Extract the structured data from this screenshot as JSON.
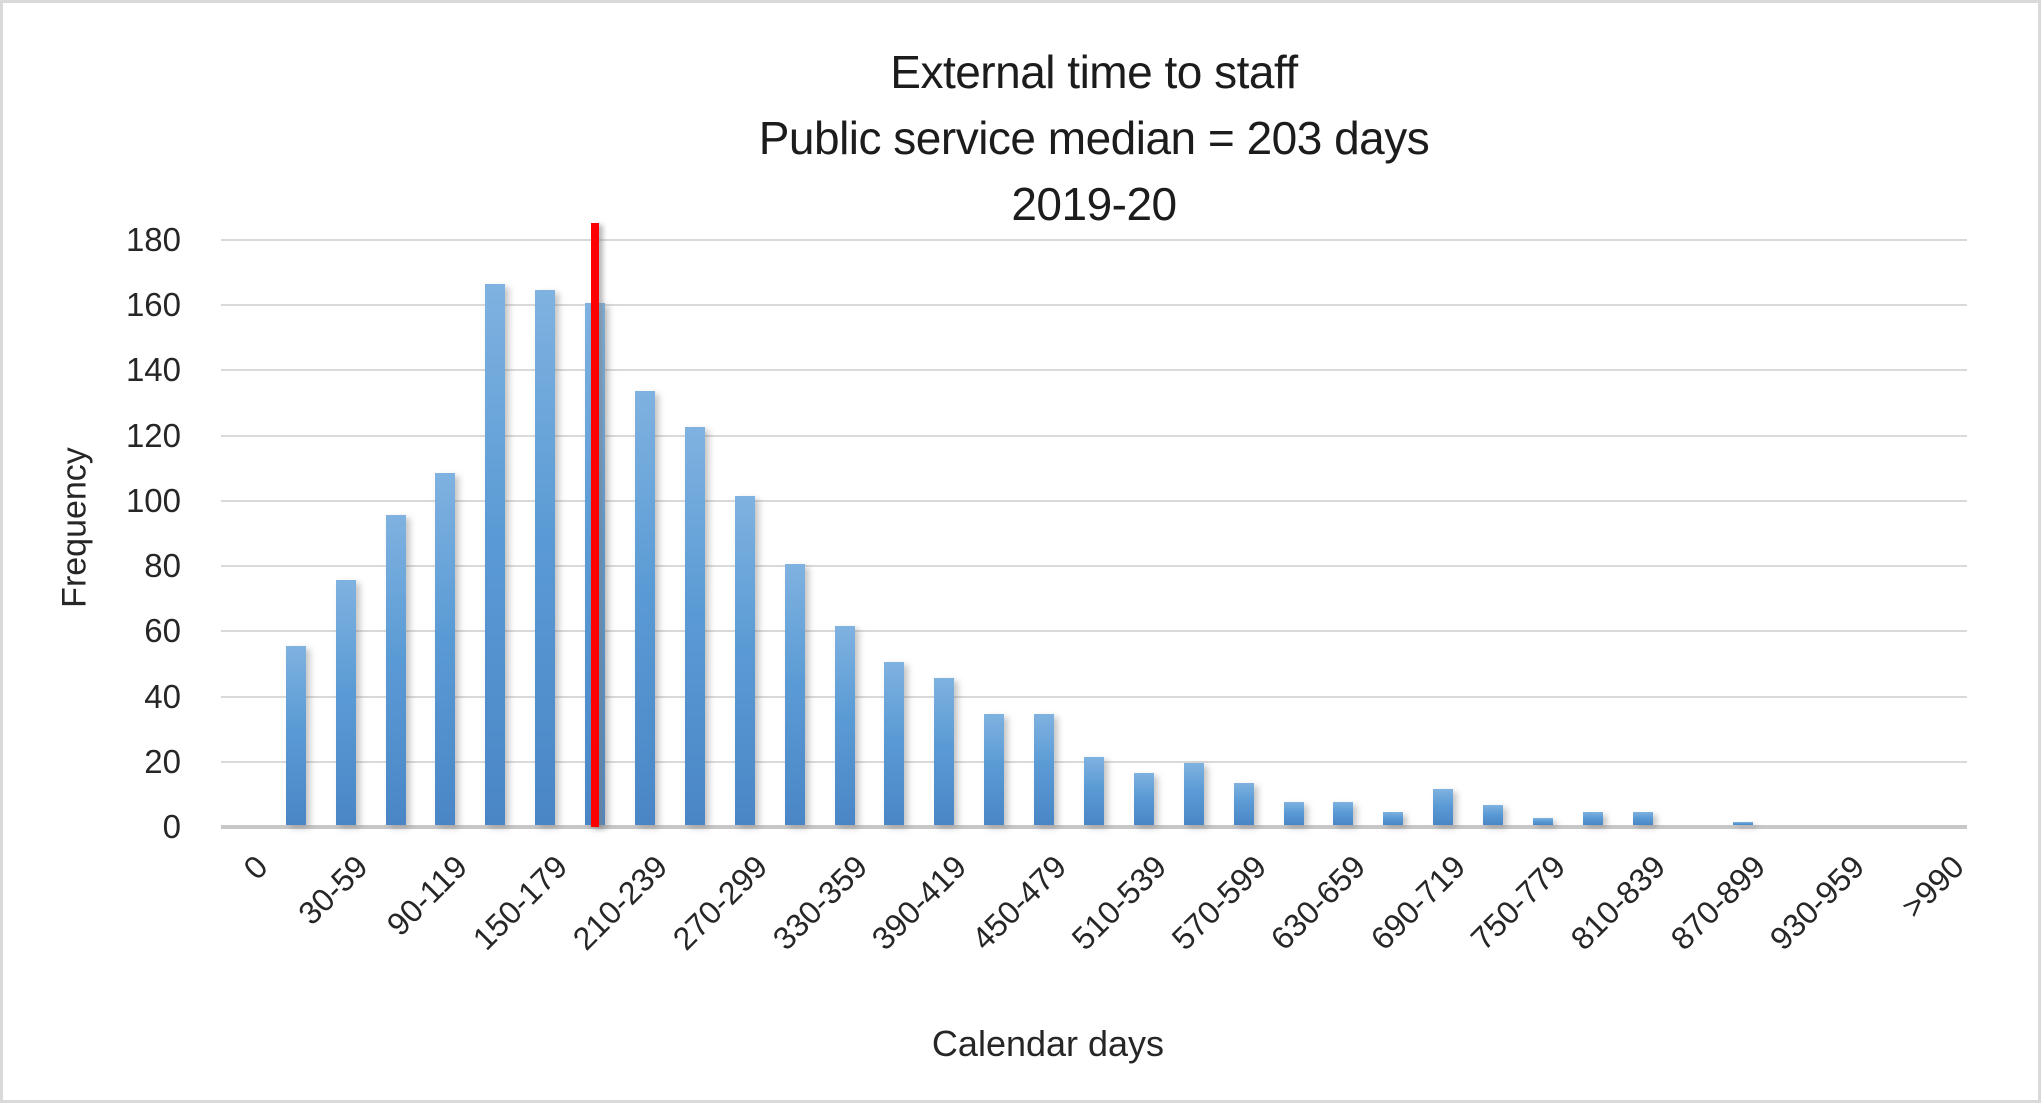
{
  "title": {
    "line1": "External time to staff",
    "line2": "Public service median = 203 days",
    "line3": "2019-20"
  },
  "y_axis": {
    "title": "Frequency",
    "tick_labels": [
      "0",
      "20",
      "40",
      "60",
      "80",
      "100",
      "120",
      "140",
      "160",
      "180"
    ]
  },
  "x_axis": {
    "title": "Calendar days"
  },
  "colors": {
    "bar_top": "#7fb2e0",
    "bar_mid": "#5b9bd5",
    "bar_bottom": "#4a86c6",
    "gridline": "#d9d9d9",
    "axis_line": "#c7c7c7",
    "text": "#262626",
    "median_line": "#fe0000"
  },
  "chart_data": {
    "type": "bar",
    "title": "External time to staff | Public service median = 203 days | 2019-20",
    "xlabel": "Calendar days",
    "ylabel": "Frequency",
    "ylim": [
      0,
      180
    ],
    "y_tick_step": 20,
    "grid": true,
    "legend": false,
    "categories": [
      "0",
      "",
      "30-59",
      "",
      "90-119",
      "",
      "150-179",
      "",
      "210-239",
      "",
      "270-299",
      "",
      "330-359",
      "",
      "390-419",
      "",
      "450-479",
      "",
      "510-539",
      "",
      "570-599",
      "",
      "630-659",
      "",
      "690-719",
      "",
      "750-779",
      "",
      "810-839",
      "",
      "870-899",
      "",
      "930-959",
      "",
      ">990"
    ],
    "values": [
      0,
      55,
      75,
      95,
      108,
      166,
      164,
      160,
      133,
      122,
      101,
      80,
      61,
      50,
      45,
      34,
      34,
      21,
      16,
      19,
      13,
      7,
      7,
      4,
      11,
      6,
      2,
      4,
      4,
      0,
      1,
      0,
      0,
      0,
      0
    ],
    "annotations": [
      {
        "type": "vline",
        "label": "median",
        "value_days": 203,
        "at_category_index": 7,
        "color": "#fe0000"
      }
    ]
  }
}
